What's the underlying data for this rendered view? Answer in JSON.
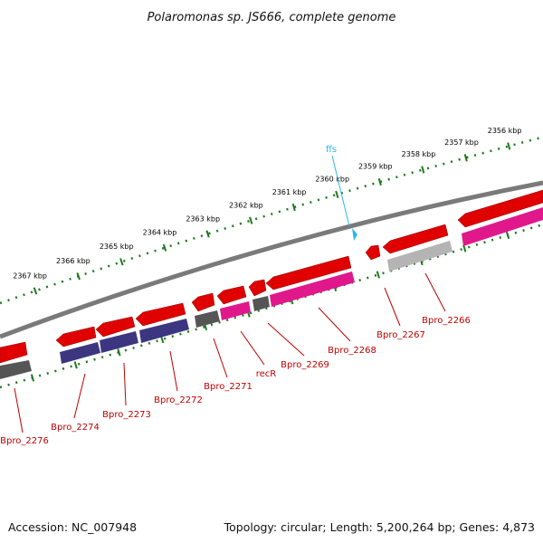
{
  "title": "Polaromonas sp. JS666, complete genome",
  "footer": {
    "accession": "Accession: NC_007948",
    "summary": "Topology: circular; Length: 5,200,264 bp; Genes: 4,873"
  },
  "colors": {
    "backbone": "#7a7a7a",
    "tick": "#1e7a1e",
    "gene_red": "#e00000",
    "cds_purple": "#3c3680",
    "cds_gray": "#555555",
    "cds_lightgray": "#b4b4b4",
    "cds_magenta": "#e0188c",
    "gene_label": "#c00000",
    "rna_label": "#2fb6e6"
  },
  "ticks": [
    {
      "label": "2356 kbp"
    },
    {
      "label": "2357 kbp"
    },
    {
      "label": "2358 kbp"
    },
    {
      "label": "2359 kbp"
    },
    {
      "label": "2360 kbp"
    },
    {
      "label": "2361 kbp"
    },
    {
      "label": "2362 kbp"
    },
    {
      "label": "2363 kbp"
    },
    {
      "label": "2364 kbp"
    },
    {
      "label": "2365 kbp"
    },
    {
      "label": "2366 kbp"
    },
    {
      "label": "2367 kbp"
    }
  ],
  "features": [
    {
      "label": "Bpro_2266",
      "track": "cds",
      "color": "cds_lightgray",
      "strand": "-"
    },
    {
      "label": "Bpro_2267",
      "track": "gene",
      "color": "gene_red",
      "strand": "-"
    },
    {
      "label": "Bpro_2268",
      "track": "cds",
      "color": "cds_magenta",
      "strand": "-"
    },
    {
      "label": "Bpro_2269",
      "track": "cds",
      "color": "cds_gray",
      "strand": "-"
    },
    {
      "label": "recR",
      "track": "cds",
      "color": "cds_magenta",
      "strand": "-"
    },
    {
      "label": "Bpro_2271",
      "track": "cds",
      "color": "cds_gray",
      "strand": "-"
    },
    {
      "label": "Bpro_2272",
      "track": "cds",
      "color": "cds_purple",
      "strand": "-"
    },
    {
      "label": "Bpro_2273",
      "track": "cds",
      "color": "cds_purple",
      "strand": "-"
    },
    {
      "label": "Bpro_2274",
      "track": "cds",
      "color": "cds_purple",
      "strand": "-"
    },
    {
      "label": "Bpro_2276",
      "track": "cds",
      "color": "cds_gray",
      "strand": "-"
    }
  ],
  "rna": [
    {
      "label": "ffs"
    }
  ]
}
